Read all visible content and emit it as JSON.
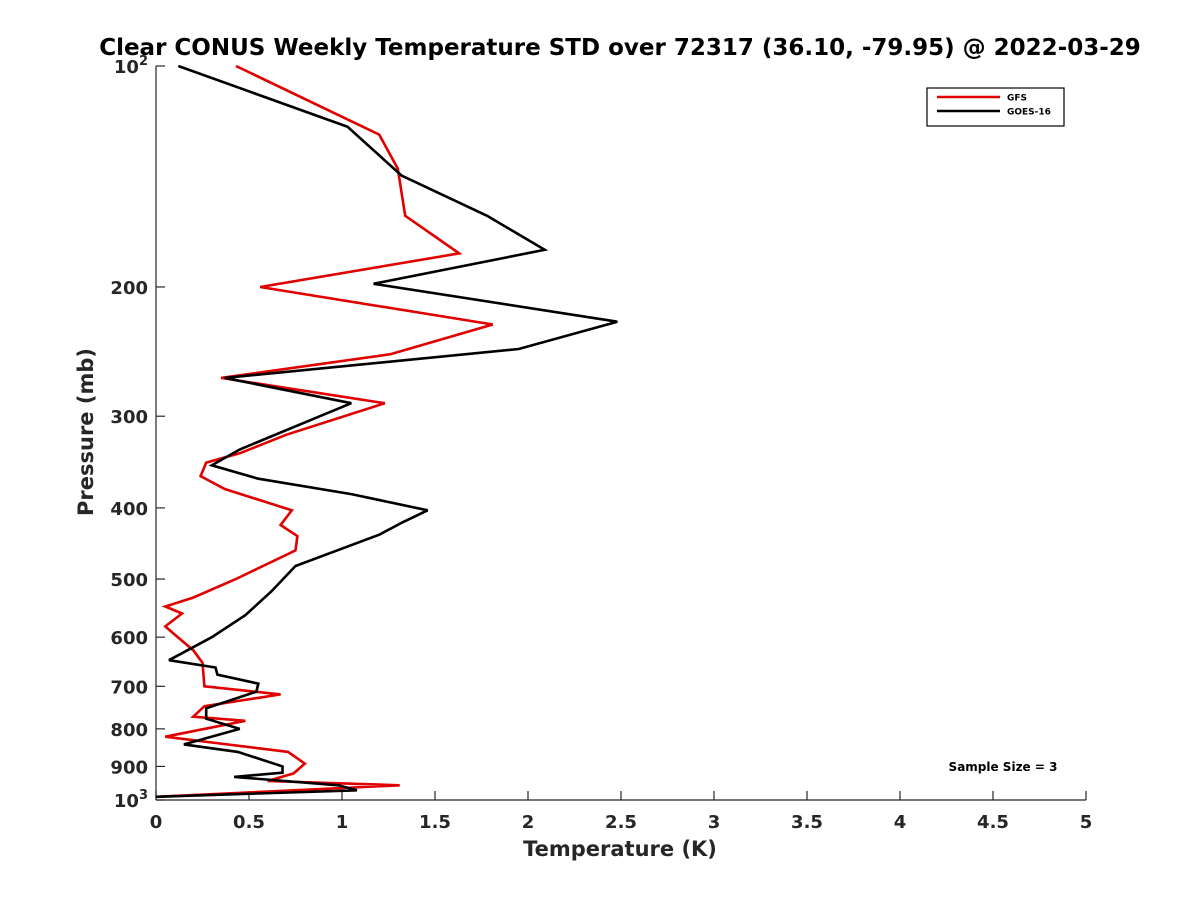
{
  "chart_data": {
    "type": "line",
    "title": "Clear CONUS Weekly Temperature STD over 72317 (36.10, -79.95) @ 2022-03-29",
    "xlabel": "Temperature (K)",
    "ylabel": "Pressure (mb)",
    "xlim": [
      0,
      5
    ],
    "ylim": [
      100,
      1000
    ],
    "y_scale": "log",
    "y_reversed": true,
    "grid": false,
    "legend_position": "top-right",
    "x_ticks": [
      0,
      0.5,
      1,
      1.5,
      2,
      2.5,
      3,
      3.5,
      4,
      4.5,
      5
    ],
    "x_tick_labels": [
      "0",
      "0.5",
      "1",
      "1.5",
      "2",
      "2.5",
      "3",
      "3.5",
      "4",
      "4.5",
      "5"
    ],
    "y_ticks": [
      100,
      200,
      300,
      400,
      500,
      600,
      700,
      800,
      900,
      1000
    ],
    "y_tick_labels": [
      {
        "base": "10",
        "exp": "2"
      },
      {
        "base": "200"
      },
      {
        "base": "300"
      },
      {
        "base": "400"
      },
      {
        "base": "500"
      },
      {
        "base": "600"
      },
      {
        "base": "700"
      },
      {
        "base": "800"
      },
      {
        "base": "900"
      },
      {
        "base": "10",
        "exp": "3"
      }
    ],
    "annotation": "Sample Size = 3",
    "series": [
      {
        "name": "GFS",
        "color": "#e00000",
        "points": [
          [
            0.43,
            100
          ],
          [
            1.2,
            124
          ],
          [
            1.3,
            138
          ],
          [
            1.34,
            160
          ],
          [
            1.63,
            180
          ],
          [
            0.56,
            200
          ],
          [
            1.81,
            225
          ],
          [
            1.26,
            247
          ],
          [
            0.35,
            266
          ],
          [
            1.23,
            288
          ],
          [
            0.7,
            318
          ],
          [
            0.45,
            337
          ],
          [
            0.27,
            347
          ],
          [
            0.24,
            362
          ],
          [
            0.37,
            377
          ],
          [
            0.73,
            403
          ],
          [
            0.67,
            422
          ],
          [
            0.76,
            437
          ],
          [
            0.75,
            457
          ],
          [
            0.43,
            500
          ],
          [
            0.2,
            530
          ],
          [
            0.05,
            545
          ],
          [
            0.14,
            557
          ],
          [
            0.05,
            580
          ],
          [
            0.1,
            595
          ],
          [
            0.2,
            625
          ],
          [
            0.25,
            650
          ],
          [
            0.26,
            700
          ],
          [
            0.67,
            718
          ],
          [
            0.26,
            745
          ],
          [
            0.2,
            770
          ],
          [
            0.48,
            780
          ],
          [
            0.05,
            820
          ],
          [
            0.3,
            835
          ],
          [
            0.71,
            860
          ],
          [
            0.8,
            892
          ],
          [
            0.74,
            920
          ],
          [
            0.6,
            942
          ],
          [
            1.31,
            955
          ],
          [
            0,
            990
          ]
        ]
      },
      {
        "name": "GOES-16",
        "color": "#000000",
        "points": [
          [
            0.12,
            100
          ],
          [
            1.03,
            121
          ],
          [
            1.32,
            141
          ],
          [
            1.78,
            160
          ],
          [
            2.09,
            178
          ],
          [
            1.17,
            198
          ],
          [
            2.48,
            223
          ],
          [
            1.95,
            243
          ],
          [
            0.37,
            266
          ],
          [
            1.05,
            288
          ],
          [
            0.45,
            333
          ],
          [
            0.3,
            350
          ],
          [
            0.55,
            365
          ],
          [
            1.05,
            383
          ],
          [
            1.46,
            403
          ],
          [
            1.33,
            418
          ],
          [
            1.2,
            435
          ],
          [
            0.75,
            480
          ],
          [
            0.62,
            520
          ],
          [
            0.48,
            560
          ],
          [
            0.3,
            600
          ],
          [
            0.07,
            645
          ],
          [
            0.32,
            660
          ],
          [
            0.33,
            675
          ],
          [
            0.55,
            694
          ],
          [
            0.54,
            712
          ],
          [
            0.27,
            750
          ],
          [
            0.27,
            775
          ],
          [
            0.45,
            800
          ],
          [
            0.15,
            840
          ],
          [
            0.44,
            860
          ],
          [
            0.68,
            900
          ],
          [
            0.68,
            918
          ],
          [
            0.42,
            930
          ],
          [
            0.98,
            955
          ],
          [
            1.08,
            970
          ],
          [
            0,
            990
          ]
        ]
      }
    ]
  }
}
